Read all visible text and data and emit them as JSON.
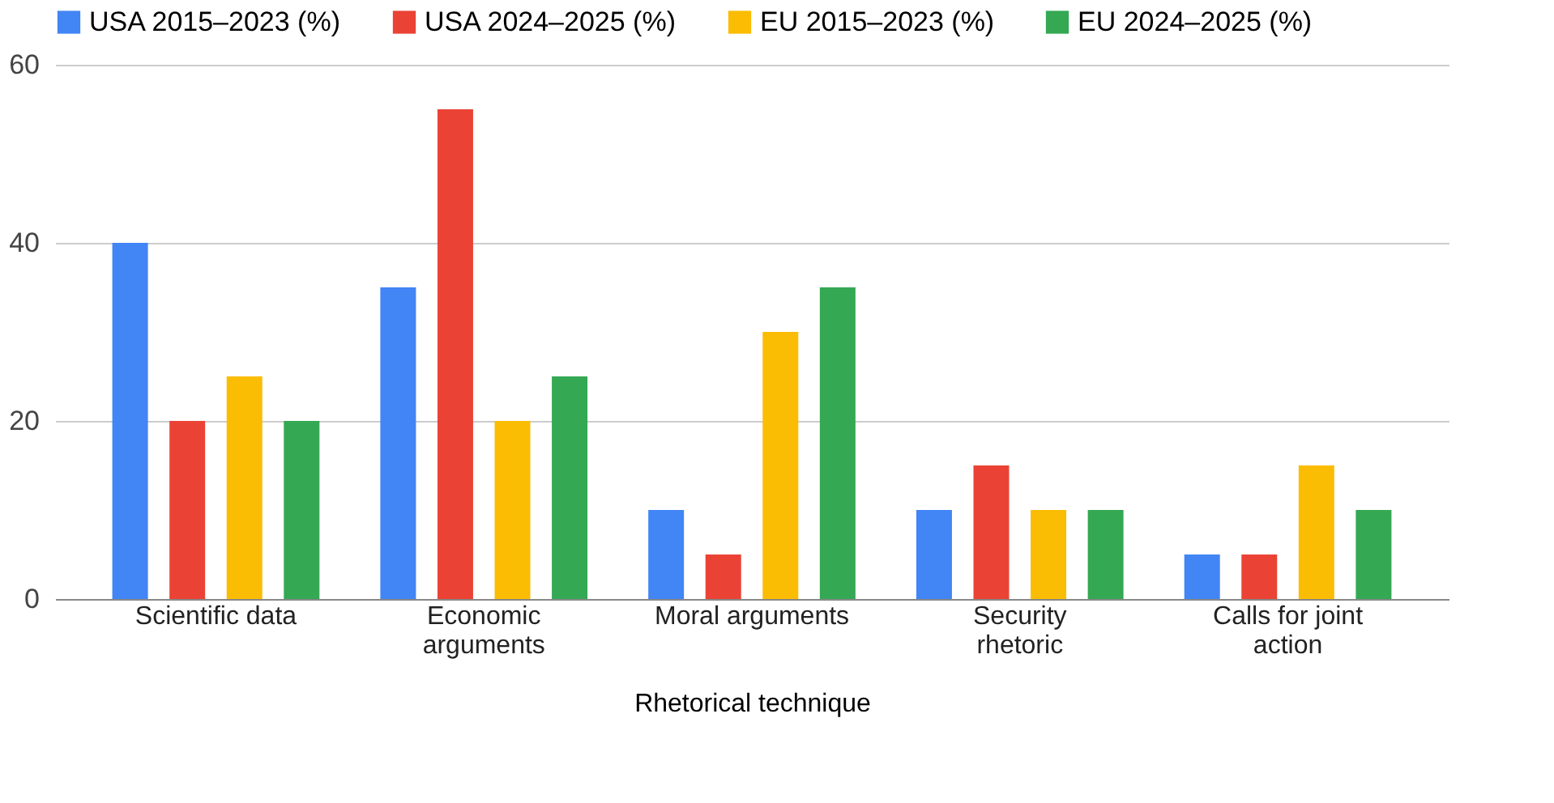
{
  "chart_data": {
    "type": "bar",
    "xlabel": "Rhetorical technique",
    "categories": [
      "Scientific data",
      "Economic arguments",
      "Moral arguments",
      "Security rhetoric",
      "Calls for joint action"
    ],
    "series": [
      {
        "name": "USA 2015–2023 (%)",
        "color": "#4285f4",
        "values": [
          40,
          35,
          10,
          10,
          5
        ]
      },
      {
        "name": "USA 2024–2025 (%)",
        "color": "#ea4335",
        "values": [
          20,
          55,
          5,
          15,
          5
        ]
      },
      {
        "name": "EU 2015–2023 (%)",
        "color": "#fbbc04",
        "values": [
          25,
          20,
          30,
          10,
          15
        ]
      },
      {
        "name": "EU 2024–2025 (%)",
        "color": "#34a853",
        "values": [
          20,
          25,
          35,
          10,
          10
        ]
      }
    ],
    "ylim": [
      0,
      60
    ],
    "yticks": [
      0,
      20,
      40,
      60
    ],
    "grid": "y",
    "legend": "top"
  }
}
